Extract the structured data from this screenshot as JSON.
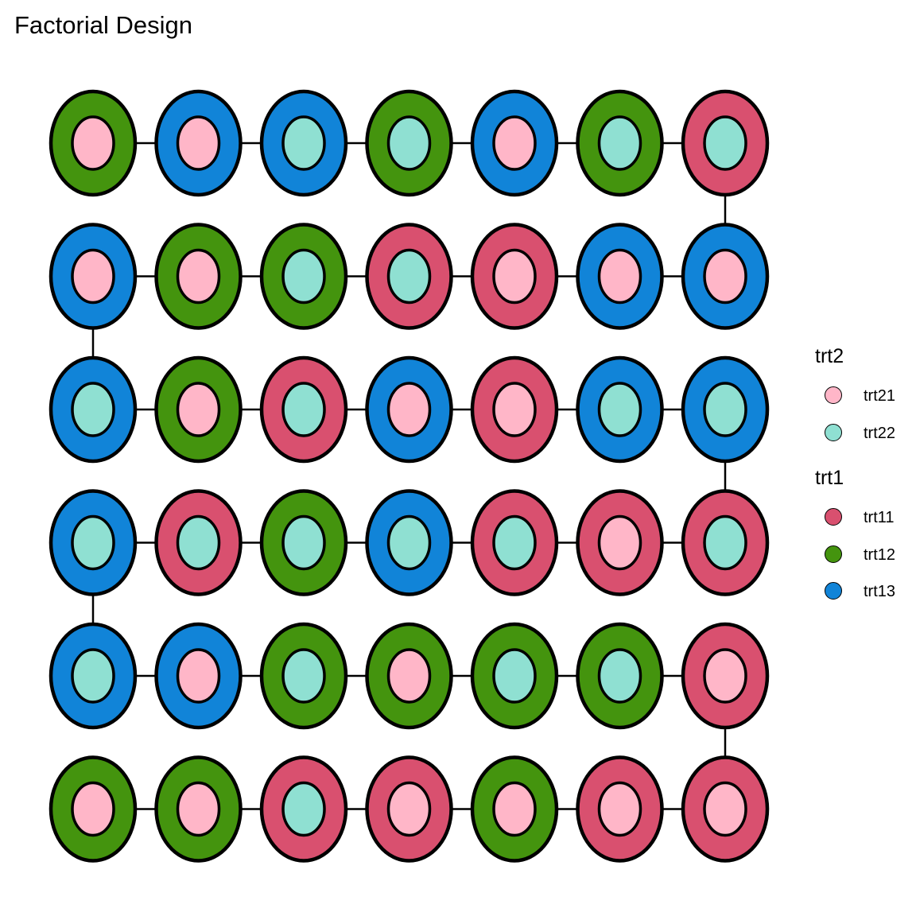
{
  "title": "Factorial Design",
  "legend": {
    "trt2": {
      "title": "trt2",
      "items": [
        {
          "label": "trt21",
          "color": "#FFB6C8"
        },
        {
          "label": "trt22",
          "color": "#8FE0D2"
        }
      ]
    },
    "trt1": {
      "title": "trt1",
      "items": [
        {
          "label": "trt11",
          "color": "#D9506F"
        },
        {
          "label": "trt12",
          "color": "#44940E"
        },
        {
          "label": "trt13",
          "color": "#1184D8"
        }
      ]
    }
  },
  "grid": {
    "rows": 6,
    "cols": 7,
    "outer": [
      [
        "trt12",
        "trt13",
        "trt13",
        "trt12",
        "trt13",
        "trt12",
        "trt11"
      ],
      [
        "trt13",
        "trt12",
        "trt12",
        "trt11",
        "trt11",
        "trt13",
        "trt13"
      ],
      [
        "trt13",
        "trt12",
        "trt11",
        "trt13",
        "trt11",
        "trt13",
        "trt13"
      ],
      [
        "trt13",
        "trt11",
        "trt12",
        "trt13",
        "trt11",
        "trt11",
        "trt11"
      ],
      [
        "trt13",
        "trt13",
        "trt12",
        "trt12",
        "trt12",
        "trt12",
        "trt11"
      ],
      [
        "trt12",
        "trt12",
        "trt11",
        "trt11",
        "trt12",
        "trt11",
        "trt11"
      ]
    ],
    "inner": [
      [
        "trt21",
        "trt21",
        "trt22",
        "trt22",
        "trt21",
        "trt22",
        "trt22"
      ],
      [
        "trt21",
        "trt21",
        "trt22",
        "trt22",
        "trt21",
        "trt21",
        "trt21"
      ],
      [
        "trt22",
        "trt21",
        "trt22",
        "trt21",
        "trt21",
        "trt22",
        "trt22"
      ],
      [
        "trt22",
        "trt22",
        "trt22",
        "trt22",
        "trt22",
        "trt21",
        "trt22"
      ],
      [
        "trt22",
        "trt21",
        "trt22",
        "trt21",
        "trt22",
        "trt22",
        "trt21"
      ],
      [
        "trt21",
        "trt21",
        "trt22",
        "trt21",
        "trt21",
        "trt21",
        "trt21"
      ]
    ],
    "vertical_links": [
      {
        "between_rows": [
          1,
          2
        ],
        "col": 7
      },
      {
        "between_rows": [
          2,
          3
        ],
        "col": 1
      },
      {
        "between_rows": [
          3,
          4
        ],
        "col": 7
      },
      {
        "between_rows": [
          4,
          5
        ],
        "col": 1
      },
      {
        "between_rows": [
          5,
          6
        ],
        "col": 7
      }
    ]
  }
}
